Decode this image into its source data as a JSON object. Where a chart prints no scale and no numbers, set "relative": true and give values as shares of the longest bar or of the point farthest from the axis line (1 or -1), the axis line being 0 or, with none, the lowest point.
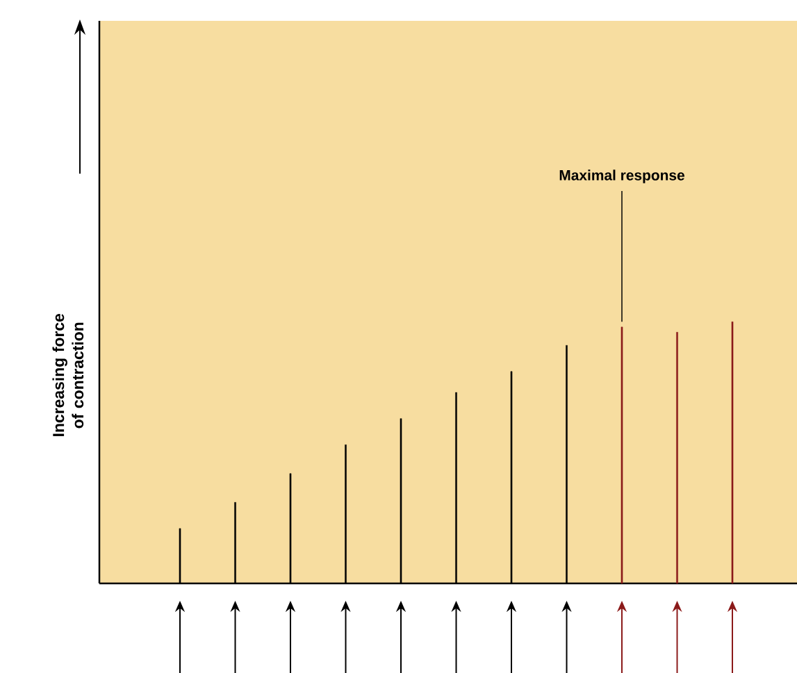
{
  "chart_data": {
    "type": "bar",
    "relative": true,
    "ylabel": "Increasing force of contraction",
    "categories": [
      null,
      null,
      null,
      null,
      null,
      null,
      null,
      null,
      null,
      null,
      null
    ],
    "values": [
      0.21,
      0.31,
      0.42,
      0.53,
      0.63,
      0.73,
      0.81,
      0.91,
      0.98,
      0.96,
      1
    ],
    "colors": [
      "#000000",
      "#000000",
      "#000000",
      "#000000",
      "#000000",
      "#000000",
      "#000000",
      "#000000",
      "#8b1a1a",
      "#8b1a1a",
      "#8b1a1a"
    ],
    "annotations": [
      "Maximal response"
    ]
  }
}
